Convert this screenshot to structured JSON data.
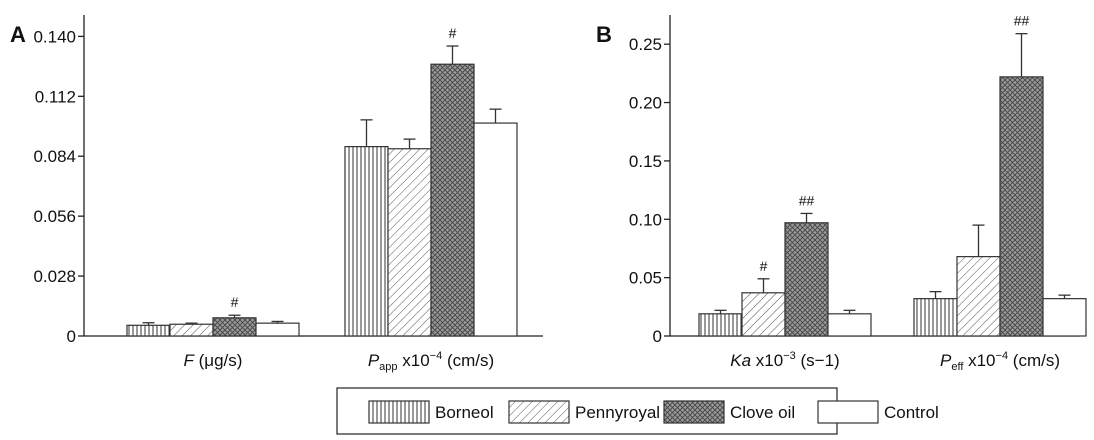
{
  "chart_data": [
    {
      "panel_label": "A",
      "type": "bar",
      "ylim": [
        0,
        0.15
      ],
      "yticks": [
        "0",
        "0.028",
        "0.056",
        "0.084",
        "0.112",
        "0.140"
      ],
      "ytick_values": [
        0,
        0.028,
        0.056,
        0.084,
        0.112,
        0.14
      ],
      "groups": [
        {
          "label_main": "F",
          "label_sub": "",
          "label_rest": " (μg/s)",
          "label_sup": "",
          "label_tail": "",
          "values": [
            0.005,
            0.0055,
            0.0085,
            0.006
          ],
          "errors": [
            0.0012,
            0.0005,
            0.0012,
            0.0008
          ],
          "marks": [
            "",
            "",
            "#",
            ""
          ]
        },
        {
          "label_main": "P",
          "label_sub": "app",
          "label_rest": " x10",
          "label_sup": "−4",
          "label_tail": " (cm/s)",
          "values": [
            0.0885,
            0.0875,
            0.127,
            0.0995
          ],
          "errors": [
            0.0125,
            0.0045,
            0.0085,
            0.0065
          ],
          "marks": [
            "",
            "",
            "#",
            ""
          ]
        }
      ]
    },
    {
      "panel_label": "B",
      "type": "bar",
      "ylim": [
        0,
        0.275
      ],
      "yticks": [
        "0",
        "0.05",
        "0.10",
        "0.15",
        "0.20",
        "0.25"
      ],
      "ytick_values": [
        0,
        0.05,
        0.1,
        0.15,
        0.2,
        0.25
      ],
      "groups": [
        {
          "label_main": "Ka",
          "label_sub": "",
          "label_rest": " x10",
          "label_sup": "−3",
          "label_tail": " (s−1)",
          "values": [
            0.019,
            0.037,
            0.097,
            0.019
          ],
          "errors": [
            0.003,
            0.012,
            0.008,
            0.003
          ],
          "marks": [
            "",
            "#",
            "##",
            ""
          ]
        },
        {
          "label_main": "P",
          "label_sub": "eff",
          "label_rest": " x10",
          "label_sup": "−4",
          "label_tail": " (cm/s)",
          "values": [
            0.032,
            0.068,
            0.222,
            0.032
          ],
          "errors": [
            0.006,
            0.027,
            0.037,
            0.003
          ],
          "marks": [
            "",
            "",
            "##",
            ""
          ]
        }
      ]
    }
  ],
  "legend": {
    "entries": [
      "Borneol",
      "Pennyroyal",
      "Clove oil",
      "Control"
    ],
    "patterns": [
      "vertical-lines",
      "diagonal-lines",
      "crosshatch",
      "solid-white"
    ],
    "placement": "bottom-right"
  },
  "colors": {
    "ink": "#222222",
    "bar_fill": "#ffffff",
    "crosshatch": "#888888"
  }
}
